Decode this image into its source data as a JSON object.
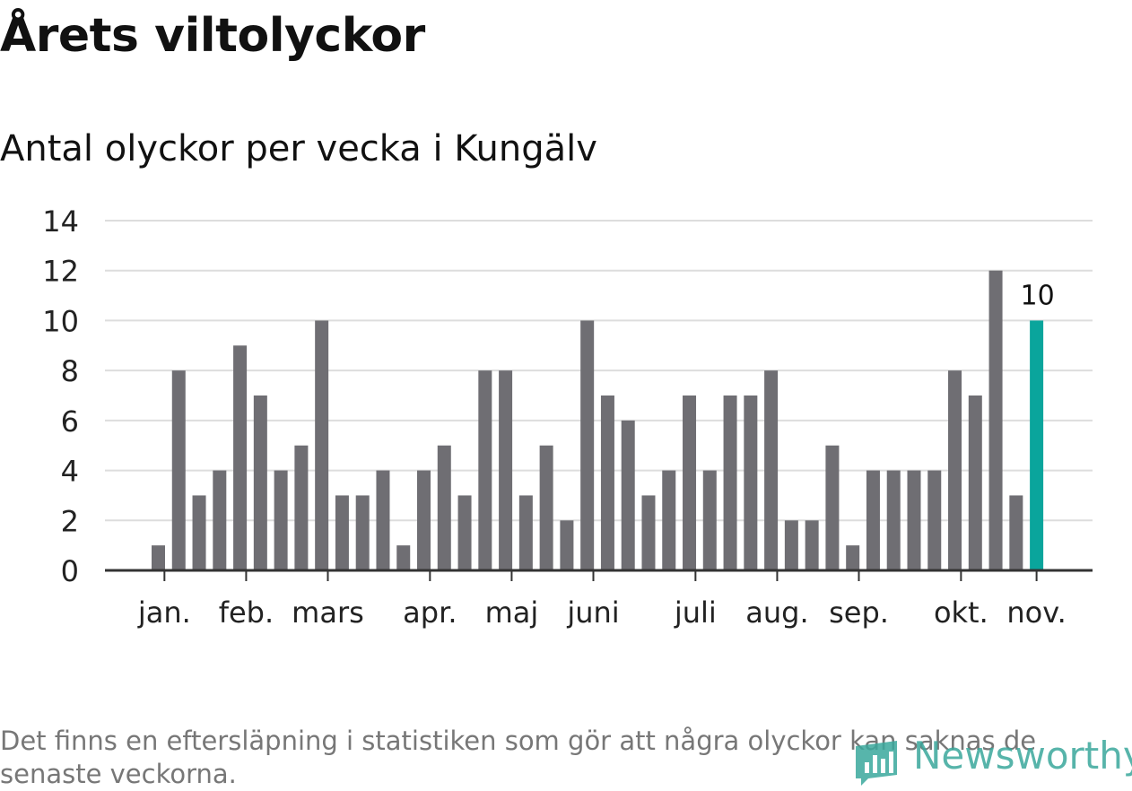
{
  "title": "Årets viltolyckor",
  "subtitle": "Antal olyckor per vecka i Kungälv",
  "footnote": "Det finns en eftersläpning i statistiken som gör att några olyckor kan saknas de senaste veckorna.",
  "logo": {
    "text": "Newsworthy",
    "icon": "newsworthy-logo-icon"
  },
  "colors": {
    "bar": "#6f6e73",
    "highlight": "#0aa59c",
    "grid": "#dddddd",
    "axis": "#333333"
  },
  "chart_data": {
    "type": "bar",
    "xlabel": "",
    "ylabel": "",
    "ylim": [
      0,
      14
    ],
    "yticks": [
      0,
      2,
      4,
      6,
      8,
      10,
      12,
      14
    ],
    "grid": true,
    "values": [
      1,
      8,
      3,
      4,
      9,
      7,
      4,
      5,
      10,
      3,
      3,
      4,
      1,
      4,
      5,
      3,
      8,
      8,
      3,
      5,
      2,
      10,
      7,
      6,
      3,
      4,
      7,
      4,
      7,
      7,
      8,
      2,
      2,
      5,
      1,
      4,
      4,
      4,
      4,
      8,
      7,
      12,
      3,
      10
    ],
    "highlight_index": 43,
    "highlight_label": "10",
    "month_labels": [
      {
        "label": "jan.",
        "bar_index": 0.3
      },
      {
        "label": "feb.",
        "bar_index": 4.3
      },
      {
        "label": "mars",
        "bar_index": 8.3
      },
      {
        "label": "apr.",
        "bar_index": 13.3
      },
      {
        "label": "maj",
        "bar_index": 17.3
      },
      {
        "label": "juni",
        "bar_index": 21.3
      },
      {
        "label": "juli",
        "bar_index": 26.3
      },
      {
        "label": "aug.",
        "bar_index": 30.3
      },
      {
        "label": "sep.",
        "bar_index": 34.3
      },
      {
        "label": "okt.",
        "bar_index": 39.3
      },
      {
        "label": "nov.",
        "bar_index": 43.0
      }
    ]
  }
}
